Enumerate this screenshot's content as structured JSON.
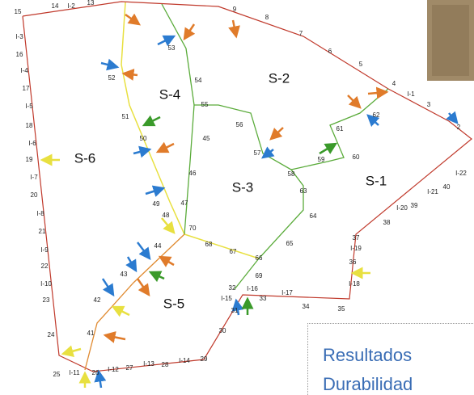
{
  "points": [
    "15",
    "14",
    "I-2",
    "13",
    "9",
    "8",
    "7",
    "6",
    "5",
    "4",
    "I-1",
    "3",
    "2",
    "I-22",
    "40",
    "I-21",
    "39",
    "I-20",
    "38",
    "37",
    "I-19",
    "36",
    "I-18",
    "35",
    "34",
    "I-17",
    "33",
    "I-16",
    "32",
    "I-15",
    "31",
    "30",
    "29",
    "I-14",
    "28",
    "I-13",
    "27",
    "I-12",
    "26",
    "I-11",
    "25",
    "24",
    "23",
    "I-10",
    "22",
    "I-9",
    "21",
    "I-8",
    "20",
    "I-7",
    "19",
    "I-6",
    "18",
    "I-5",
    "17",
    "I-4",
    "16",
    "I-3",
    "53",
    "52",
    "54",
    "51",
    "55",
    "56",
    "45",
    "50",
    "57",
    "58",
    "59",
    "60",
    "61",
    "62",
    "46",
    "63",
    "64",
    "49",
    "47",
    "48",
    "70",
    "68",
    "67",
    "66",
    "65",
    "44",
    "43",
    "69",
    "42",
    "41"
  ],
  "sectors": [
    "S-4",
    "S-2",
    "S-6",
    "S-3",
    "S-1",
    "S-5"
  ],
  "footer": {
    "line1": "Resultados",
    "line2": "Durabilidad"
  }
}
